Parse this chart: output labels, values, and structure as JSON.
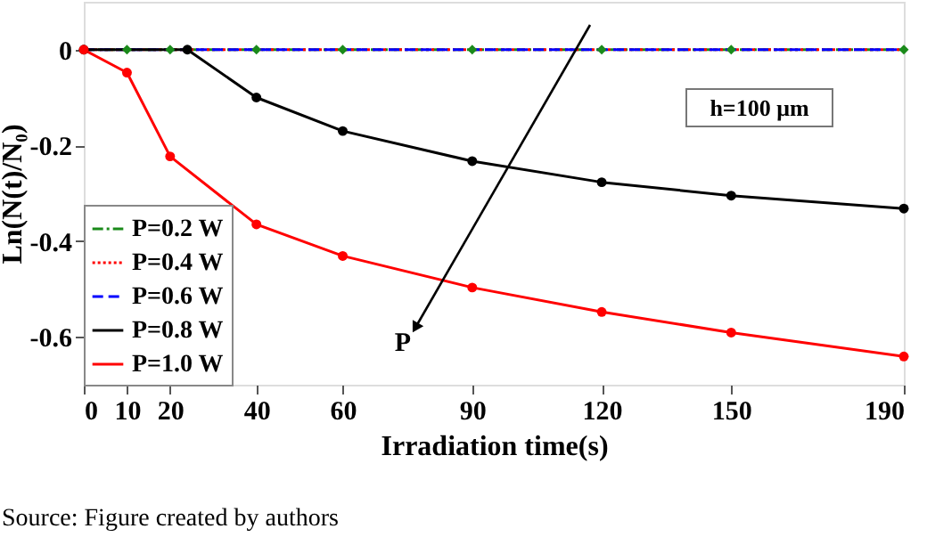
{
  "chart_data": {
    "type": "line",
    "xlabel": "Irradiation time(s)",
    "ylabel": "Ln(N(t)/N₀)",
    "xlim": [
      0,
      190
    ],
    "xticks": [
      0,
      10,
      20,
      40,
      60,
      90,
      120,
      150,
      190
    ],
    "ylim": [
      -0.7,
      0.1
    ],
    "yticks": [
      0,
      -0.2,
      -0.4,
      -0.6
    ],
    "grid": false,
    "legend": "bottom left",
    "series": [
      {
        "name": "P=0.2 W",
        "color": "#1a8a1a",
        "line_style": "dashdot",
        "marker": "diamond",
        "x": [
          0,
          10,
          20,
          40,
          60,
          90,
          120,
          150,
          190
        ],
        "values": [
          0,
          0,
          0,
          0,
          0,
          0,
          0,
          0,
          0
        ]
      },
      {
        "name": "P=0.4 W",
        "color": "#ff0000",
        "line_style": "dotted",
        "x": [
          0,
          190
        ],
        "values": [
          0,
          0
        ]
      },
      {
        "name": "P=0.6 W",
        "color": "#0000ff",
        "line_style": "dashed",
        "x": [
          0,
          190
        ],
        "values": [
          0,
          0
        ]
      },
      {
        "name": "P=0.8 W",
        "color": "#000000",
        "line_style": "solid",
        "marker": "circle",
        "x": [
          0,
          24,
          40,
          60,
          90,
          120,
          150,
          190
        ],
        "values": [
          0,
          0,
          -0.1,
          -0.17,
          -0.233,
          -0.277,
          -0.305,
          -0.332
        ]
      },
      {
        "name": "P=1.0 W",
        "color": "#ff0000",
        "line_style": "solid",
        "marker": "circle",
        "x": [
          0,
          10,
          20,
          40,
          60,
          90,
          120,
          150,
          190
        ],
        "values": [
          0,
          -0.048,
          -0.223,
          -0.365,
          -0.431,
          -0.497,
          -0.548,
          -0.591,
          -0.641
        ]
      }
    ],
    "annotations": [
      "h=100 μm",
      "P",
      "Source: Figure created by authors"
    ]
  }
}
